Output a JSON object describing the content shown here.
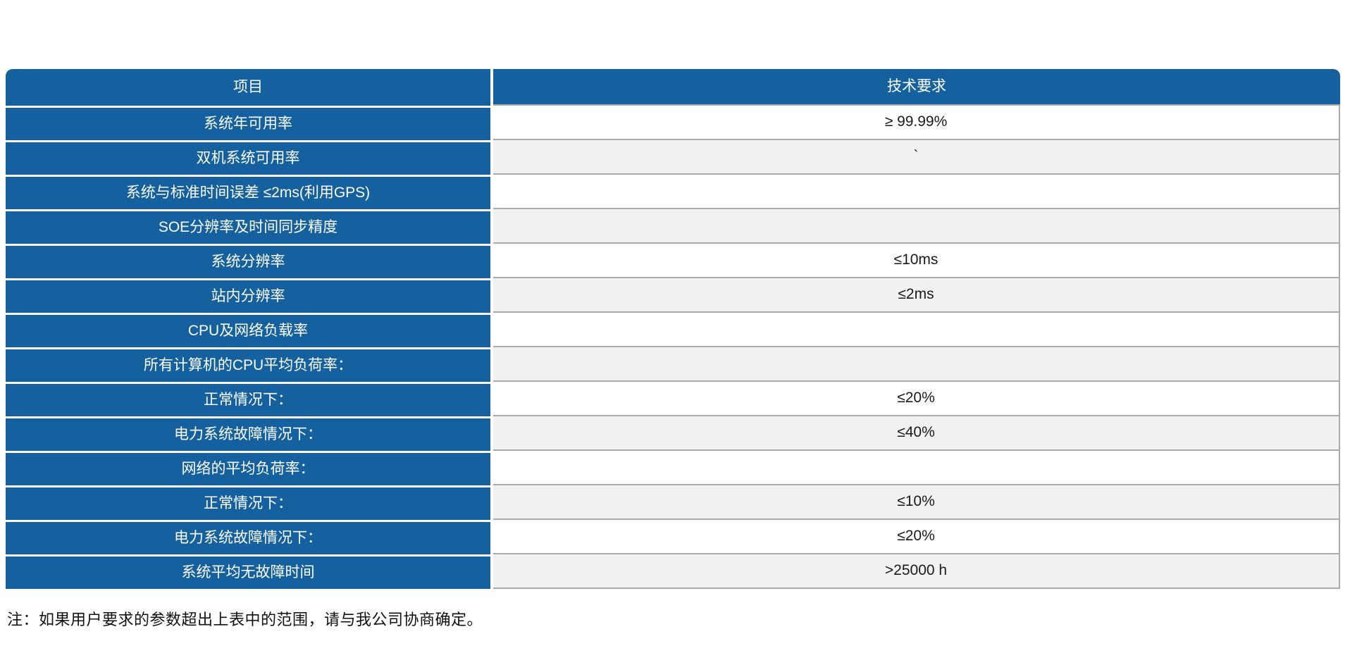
{
  "colors": {
    "header_blue": "#1561a0",
    "row_white": "#ffffff",
    "row_gray": "#f1f1f1",
    "border_gray": "#ababab",
    "text_white": "#ffffff",
    "text_dark": "#1a1a1a"
  },
  "table": {
    "headers": {
      "item": "项目",
      "requirement": "技术要求"
    },
    "rows": [
      {
        "item": "系统年可用率",
        "value": "≥ 99.99%"
      },
      {
        "item": "双机系统可用率",
        "value": "`"
      },
      {
        "item": "系统与标准时间误差 ≤2ms(利用GPS)",
        "value": ""
      },
      {
        "item": "SOE分辨率及时间同步精度",
        "value": ""
      },
      {
        "item": "系统分辨率",
        "value": "≤10ms"
      },
      {
        "item": "站内分辨率",
        "value": "≤2ms"
      },
      {
        "item": "CPU及网络负载率",
        "value": ""
      },
      {
        "item": "所有计算机的CPU平均负荷率：",
        "value": ""
      },
      {
        "item": "正常情况下：",
        "value": "≤20%"
      },
      {
        "item": "电力系统故障情况下：",
        "value": "≤40%"
      },
      {
        "item": "网络的平均负荷率：",
        "value": ""
      },
      {
        "item": "正常情况下：",
        "value": "≤10%"
      },
      {
        "item": "电力系统故障情况下：",
        "value": "≤20%"
      },
      {
        "item": "系统平均无故障时间",
        "value": ">25000 h"
      }
    ]
  },
  "note": "注：如果用户要求的参数超出上表中的范围，请与我公司协商确定。"
}
